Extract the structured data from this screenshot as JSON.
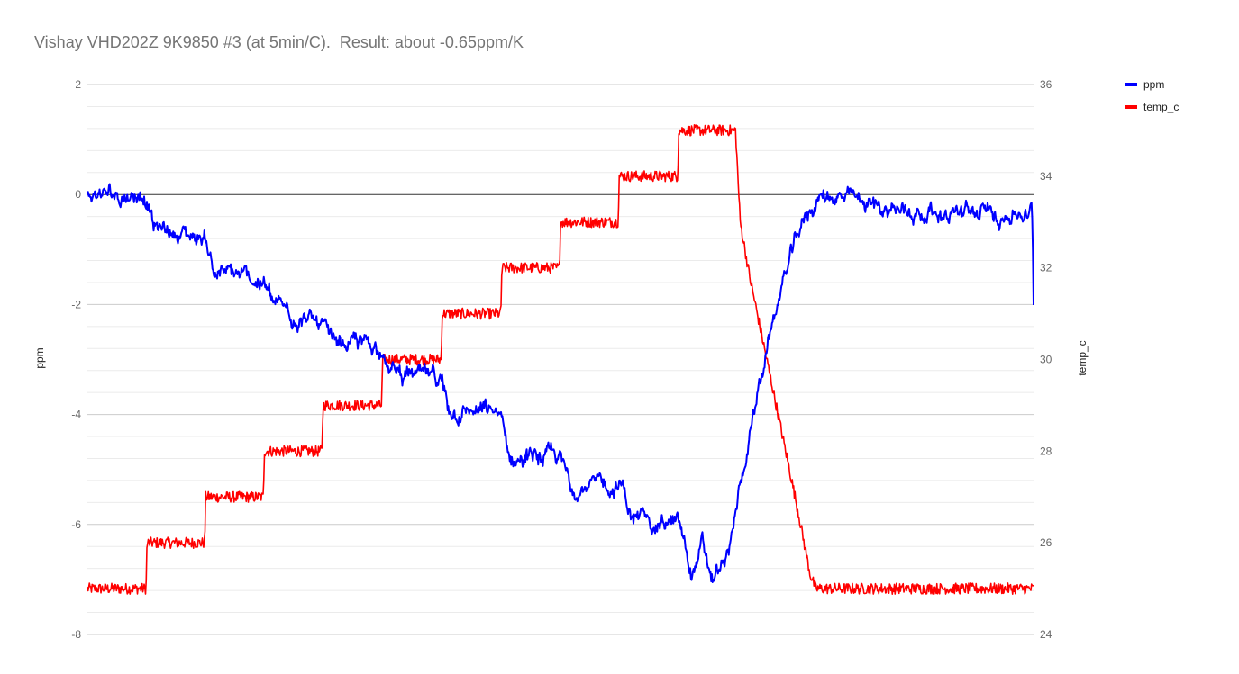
{
  "chart_data": {
    "type": "line",
    "title": "Vishay VHD202Z 9K9850 #3 (at 5min/C).  Result: about -0.65ppm/K",
    "xlabel": "",
    "y_left": {
      "label": "ppm",
      "range": [
        -8,
        2
      ],
      "ticks": [
        -8,
        -6,
        -4,
        -2,
        0,
        2
      ],
      "tick_labels": [
        "-8",
        "-6",
        "-4",
        "-2",
        "0",
        "2"
      ]
    },
    "y_right": {
      "label": "temp_c",
      "range": [
        24,
        36
      ],
      "ticks": [
        24,
        26,
        28,
        30,
        32,
        34,
        36
      ],
      "tick_labels": [
        "24",
        "26",
        "28",
        "30",
        "32",
        "34",
        "36"
      ]
    },
    "x_range": [
      0,
      100
    ],
    "grid": true,
    "legend": {
      "position": "right"
    },
    "series": [
      {
        "name": "ppm",
        "axis": "left",
        "color": "#0000ff",
        "noise": 0.18,
        "points": [
          [
            0,
            0.0
          ],
          [
            6.2,
            0.0
          ],
          [
            6.4,
            -0.1
          ],
          [
            7.0,
            -0.6
          ],
          [
            12.5,
            -0.8
          ],
          [
            12.7,
            -0.9
          ],
          [
            13.4,
            -1.4
          ],
          [
            18.7,
            -1.6
          ],
          [
            18.9,
            -1.7
          ],
          [
            19.6,
            -2.0
          ],
          [
            24.9,
            -2.4
          ],
          [
            25.1,
            -2.5
          ],
          [
            25.6,
            -2.7
          ],
          [
            31.2,
            -2.75
          ],
          [
            31.4,
            -2.85
          ],
          [
            31.8,
            -3.2
          ],
          [
            37.5,
            -3.4
          ],
          [
            37.7,
            -3.6
          ],
          [
            38.2,
            -3.9
          ],
          [
            43.7,
            -4.0
          ],
          [
            43.9,
            -4.3
          ],
          [
            44.6,
            -4.8
          ],
          [
            50.0,
            -4.8
          ],
          [
            50.4,
            -5.0
          ],
          [
            51.2,
            -5.3
          ],
          [
            56.5,
            -5.3
          ],
          [
            56.9,
            -5.5
          ],
          [
            57.6,
            -5.9
          ],
          [
            62.5,
            -6.0
          ],
          [
            63.0,
            -6.3
          ],
          [
            63.8,
            -6.9
          ],
          [
            65.0,
            -6.4
          ],
          [
            66.0,
            -7.0
          ],
          [
            67.8,
            -6.6
          ],
          [
            68.8,
            -5.5
          ],
          [
            70.4,
            -4.0
          ],
          [
            72.2,
            -2.5
          ],
          [
            74.0,
            -1.3
          ],
          [
            75.6,
            -0.5
          ],
          [
            77.0,
            -0.1
          ],
          [
            78.5,
            0.0
          ],
          [
            80.5,
            -0.1
          ],
          [
            86.0,
            -0.3
          ],
          [
            95.0,
            -0.35
          ],
          [
            99.8,
            -0.35
          ],
          [
            99.9,
            -0.7
          ],
          [
            100,
            -2.0
          ]
        ]
      },
      {
        "name": "temp_c",
        "axis": "right",
        "color": "#ff0000",
        "noise": 0.12,
        "points": [
          [
            0,
            25.0
          ],
          [
            6.2,
            25.0
          ],
          [
            6.3,
            26.0
          ],
          [
            12.4,
            26.0
          ],
          [
            12.5,
            27.0
          ],
          [
            18.6,
            27.0
          ],
          [
            18.7,
            28.0
          ],
          [
            24.8,
            28.0
          ],
          [
            24.9,
            29.0
          ],
          [
            31.1,
            29.0
          ],
          [
            31.2,
            30.0
          ],
          [
            37.4,
            30.0
          ],
          [
            37.5,
            31.0
          ],
          [
            43.7,
            31.0
          ],
          [
            43.8,
            32.0
          ],
          [
            49.9,
            32.0
          ],
          [
            50.0,
            33.0
          ],
          [
            56.1,
            33.0
          ],
          [
            56.2,
            34.0
          ],
          [
            62.4,
            34.0
          ],
          [
            62.5,
            35.0
          ],
          [
            68.5,
            35.0
          ],
          [
            69.0,
            33.0
          ],
          [
            70.0,
            31.8
          ],
          [
            71.5,
            30.3
          ],
          [
            73.0,
            28.8
          ],
          [
            75.0,
            26.8
          ],
          [
            76.4,
            25.3
          ],
          [
            77.0,
            25.0
          ],
          [
            100,
            25.0
          ]
        ]
      }
    ]
  }
}
